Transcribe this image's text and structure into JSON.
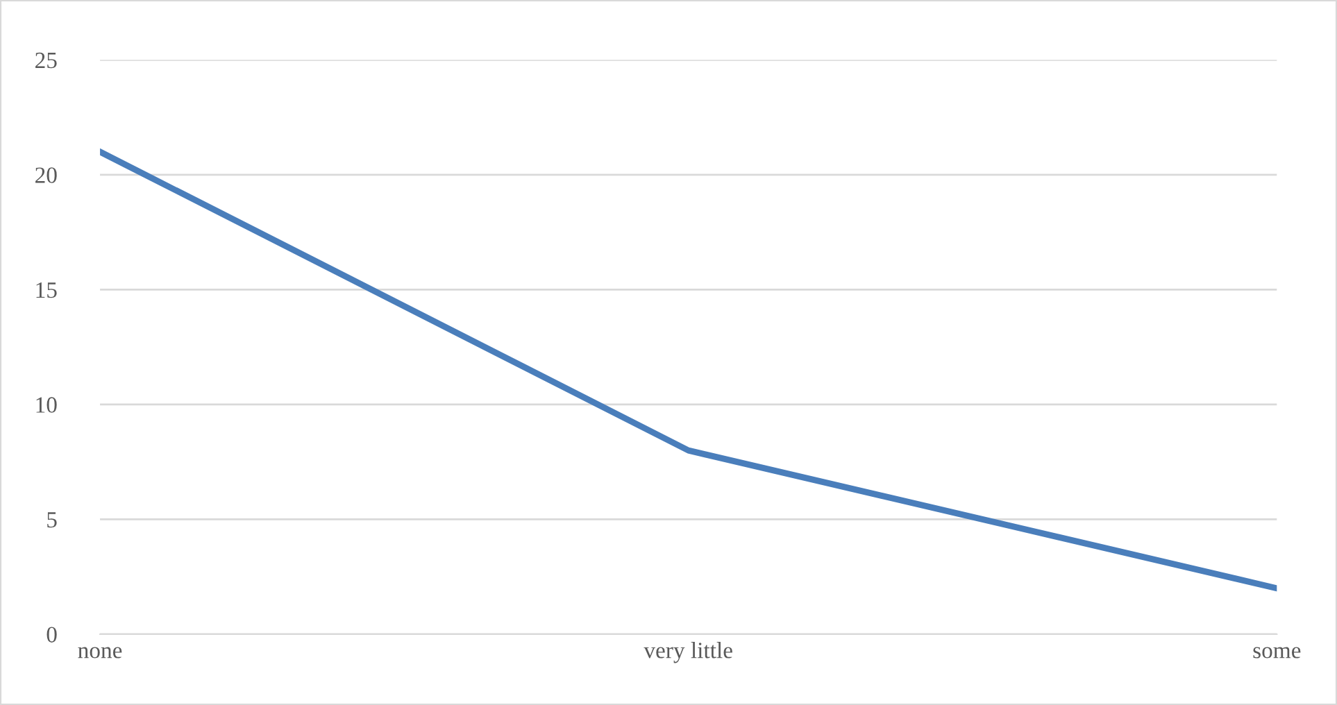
{
  "chart_data": {
    "type": "line",
    "categories": [
      "none",
      "very little",
      "some"
    ],
    "series": [
      {
        "color": "#4a7ebb",
        "values": [
          21,
          8,
          2
        ]
      }
    ],
    "ylim": [
      0,
      25
    ],
    "yticks": [
      0,
      5,
      10,
      15,
      20,
      25
    ],
    "grid": "y",
    "marker": "none",
    "line_style": "solid"
  }
}
